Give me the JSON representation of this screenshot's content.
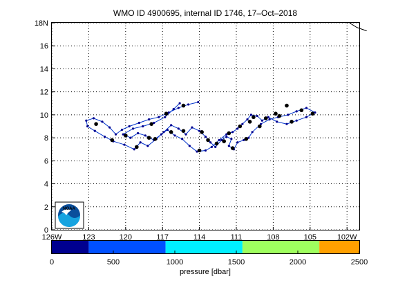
{
  "chart_data": {
    "type": "scatter",
    "title": "WMO ID 4900695, internal ID 1746, 17–Oct–2018",
    "xlim": [
      -126,
      -101
    ],
    "ylim": [
      0,
      18
    ],
    "x_ticks": [
      {
        "v": -126,
        "label": "126W"
      },
      {
        "v": -123,
        "label": "123"
      },
      {
        "v": -120,
        "label": "120"
      },
      {
        "v": -117,
        "label": "117"
      },
      {
        "v": -114,
        "label": "114"
      },
      {
        "v": -111,
        "label": "111"
      },
      {
        "v": -108,
        "label": "108"
      },
      {
        "v": -105,
        "label": "105"
      },
      {
        "v": -102,
        "label": "102W"
      }
    ],
    "y_ticks": [
      {
        "v": 0,
        "label": "0"
      },
      {
        "v": 2,
        "label": "2"
      },
      {
        "v": 4,
        "label": "4"
      },
      {
        "v": 6,
        "label": "6"
      },
      {
        "v": 8,
        "label": "8"
      },
      {
        "v": 10,
        "label": "10"
      },
      {
        "v": 12,
        "label": "12"
      },
      {
        "v": 14,
        "label": "14"
      },
      {
        "v": 16,
        "label": "16"
      },
      {
        "v": 18,
        "label": "18N"
      }
    ],
    "grid": true,
    "coastline": [
      [
        -101.8,
        18
      ],
      [
        -101.2,
        17.6
      ],
      [
        -100.4,
        17.3
      ]
    ],
    "float_track": [
      [
        -114.1,
        11.1
      ],
      [
        -114.9,
        10.9
      ],
      [
        -115.7,
        10.6
      ],
      [
        -116.5,
        10.2
      ],
      [
        -117.3,
        9.8
      ],
      [
        -118.1,
        9.6
      ],
      [
        -118.9,
        9.3
      ],
      [
        -119.7,
        9.0
      ],
      [
        -120.3,
        8.7
      ],
      [
        -120.8,
        8.3
      ],
      [
        -121.3,
        8.9
      ],
      [
        -121.9,
        9.4
      ],
      [
        -122.6,
        9.7
      ],
      [
        -123.2,
        9.5
      ],
      [
        -123.1,
        9.0
      ],
      [
        -122.5,
        8.6
      ],
      [
        -121.7,
        8.1
      ],
      [
        -121.0,
        7.7
      ],
      [
        -120.1,
        7.4
      ],
      [
        -119.3,
        7.0
      ],
      [
        -118.8,
        7.6
      ],
      [
        -118.2,
        7.3
      ],
      [
        -117.5,
        7.9
      ],
      [
        -116.9,
        8.5
      ],
      [
        -116.3,
        9.1
      ],
      [
        -115.7,
        8.8
      ],
      [
        -115.1,
        8.3
      ],
      [
        -114.6,
        8.9
      ],
      [
        -114.0,
        8.6
      ],
      [
        -113.5,
        8.1
      ],
      [
        -113.1,
        7.6
      ],
      [
        -112.7,
        7.2
      ],
      [
        -112.2,
        7.8
      ],
      [
        -111.8,
        8.1
      ],
      [
        -111.4,
        7.9
      ],
      [
        -111.6,
        7.3
      ],
      [
        -111.2,
        7.0
      ],
      [
        -110.9,
        7.6
      ],
      [
        -110.4,
        7.8
      ],
      [
        -110.0,
        8.0
      ],
      [
        -109.7,
        8.5
      ],
      [
        -109.0,
        9.2
      ],
      [
        -108.3,
        9.6
      ],
      [
        -107.6,
        9.8
      ],
      [
        -106.8,
        10.0
      ],
      [
        -106.1,
        10.3
      ],
      [
        -105.3,
        10.6
      ],
      [
        -104.6,
        10.2
      ],
      [
        -105.3,
        9.8
      ],
      [
        -106.1,
        9.5
      ],
      [
        -106.9,
        9.2
      ],
      [
        -107.7,
        9.4
      ],
      [
        -108.4,
        9.8
      ],
      [
        -108.9,
        9.5
      ],
      [
        -109.3,
        9.9
      ],
      [
        -109.8,
        10.0
      ],
      [
        -110.1,
        9.6
      ],
      [
        -110.5,
        9.2
      ],
      [
        -110.9,
        8.8
      ],
      [
        -111.3,
        8.5
      ],
      [
        -111.8,
        8.3
      ],
      [
        -112.4,
        7.8
      ],
      [
        -113.0,
        7.2
      ],
      [
        -113.5,
        6.9
      ],
      [
        -114.2,
        6.8
      ],
      [
        -114.8,
        7.3
      ],
      [
        -115.4,
        7.9
      ],
      [
        -116.0,
        8.2
      ],
      [
        -116.6,
        8.7
      ],
      [
        -117.1,
        8.3
      ],
      [
        -117.7,
        7.8
      ],
      [
        -118.4,
        8.2
      ],
      [
        -119.0,
        8.4
      ],
      [
        -119.6,
        8.0
      ],
      [
        -120.2,
        8.3
      ],
      [
        -119.4,
        8.8
      ],
      [
        -118.6,
        9.0
      ],
      [
        -117.7,
        9.3
      ],
      [
        -116.8,
        9.8
      ],
      [
        -116.1,
        10.5
      ],
      [
        -115.6,
        11.0
      ]
    ],
    "surface_points": [
      [
        -115.3,
        10.8
      ],
      [
        -116.7,
        10.1
      ],
      [
        -122.4,
        9.2
      ],
      [
        -121.1,
        7.8
      ],
      [
        -119.1,
        7.2
      ],
      [
        -117.6,
        7.9
      ],
      [
        -115.3,
        8.6
      ],
      [
        -113.3,
        7.8
      ],
      [
        -112.0,
        7.7
      ],
      [
        -111.3,
        7.1
      ],
      [
        -110.2,
        7.9
      ],
      [
        -109.1,
        9.0
      ],
      [
        -107.5,
        9.9
      ],
      [
        -105.7,
        10.4
      ],
      [
        -104.8,
        10.1
      ],
      [
        -106.5,
        9.4
      ],
      [
        -108.6,
        9.7
      ],
      [
        -109.6,
        9.8
      ],
      [
        -110.7,
        9.0
      ],
      [
        -112.6,
        7.5
      ],
      [
        -114.0,
        6.9
      ],
      [
        -116.3,
        8.5
      ],
      [
        -118.1,
        8.0
      ],
      [
        -120.0,
        8.2
      ],
      [
        -117.9,
        9.2
      ],
      [
        -106.9,
        10.8
      ],
      [
        -107.8,
        10.1
      ],
      [
        -109.9,
        9.4
      ],
      [
        -111.6,
        8.4
      ],
      [
        -113.8,
        8.5
      ]
    ],
    "colorbar": {
      "label": "pressure [dbar]",
      "range": [
        0,
        2500
      ],
      "ticks": [
        {
          "v": 0,
          "label": "0"
        },
        {
          "v": 500,
          "label": "500"
        },
        {
          "v": 1000,
          "label": "1000"
        },
        {
          "v": 1500,
          "label": "1500"
        },
        {
          "v": 2000,
          "label": "2000"
        },
        {
          "v": 2500,
          "label": "2500"
        }
      ],
      "bands": [
        {
          "from": 0,
          "to": 300,
          "color": "#00008f"
        },
        {
          "from": 300,
          "to": 925,
          "color": "#0050ff"
        },
        {
          "from": 925,
          "to": 1550,
          "color": "#00efff"
        },
        {
          "from": 1550,
          "to": 2175,
          "color": "#9fff5f"
        },
        {
          "from": 2175,
          "to": 2500,
          "color": "#ffa000"
        }
      ]
    },
    "logo": {
      "text": "NOAA",
      "colors": [
        "#0a4f9c",
        "#16a3e0",
        "#ffffff"
      ]
    }
  }
}
